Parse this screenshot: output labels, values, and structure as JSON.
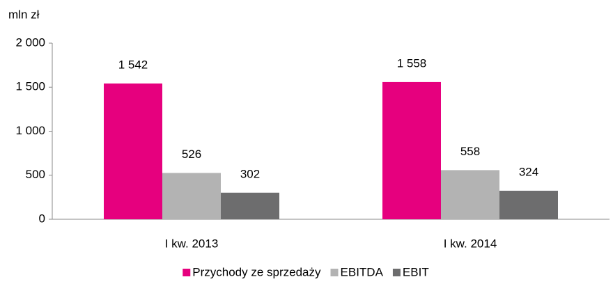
{
  "chart_data": {
    "type": "bar",
    "y_label": "mln zł",
    "categories": [
      "I kw. 2013",
      "I kw. 2014"
    ],
    "series": [
      {
        "name": "Przychody ze sprzedaży",
        "color": "#e6007e",
        "values": [
          1542,
          1558
        ],
        "value_labels": [
          "1 542",
          "1 558"
        ]
      },
      {
        "name": "EBITDA",
        "color": "#b3b3b3",
        "values": [
          526,
          558
        ],
        "value_labels": [
          "526",
          "558"
        ]
      },
      {
        "name": "EBIT",
        "color": "#6d6d6e",
        "values": [
          302,
          324
        ],
        "value_labels": [
          "302",
          "324"
        ]
      }
    ],
    "ylim": [
      0,
      2000
    ],
    "yticks": [
      0,
      500,
      {
        "value": 1000,
        "label": "1 000"
      },
      {
        "value": 1500,
        "label": "1 500"
      },
      {
        "value": 2000,
        "label": "2 000"
      }
    ],
    "grid": false,
    "legend": "bottom"
  }
}
